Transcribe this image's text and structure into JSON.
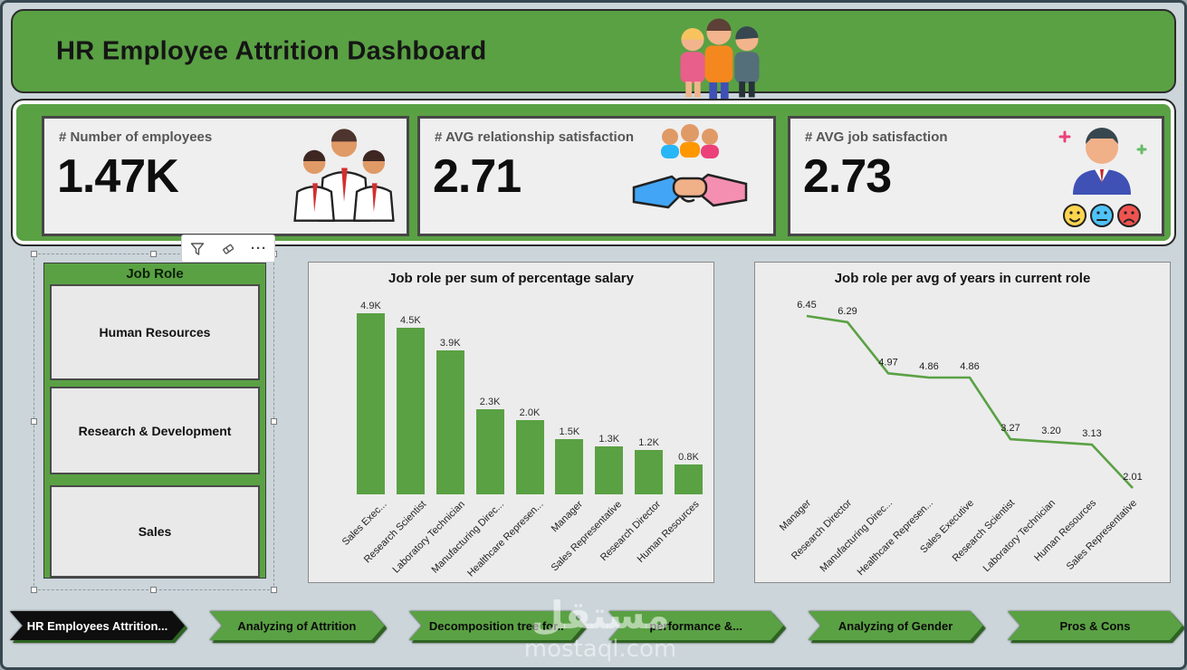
{
  "header": {
    "title": "HR Employee Attrition Dashboard"
  },
  "kpis": [
    {
      "label": "# Number of employees",
      "value": "1.47K",
      "icon": "employees-group-icon"
    },
    {
      "label": "# AVG relationship satisfaction",
      "value": "2.71",
      "icon": "handshake-icon"
    },
    {
      "label": "# AVG job satisfaction",
      "value": "2.73",
      "icon": "job-satisfaction-icon"
    }
  ],
  "toolbar": {
    "more": "···"
  },
  "slicer": {
    "title": "Job Role",
    "items": [
      "Human Resources",
      "Research & Development",
      "Sales"
    ]
  },
  "chart_data": [
    {
      "type": "bar",
      "title": "Job role per sum of percentage salary",
      "categories": [
        "Sales Exec...",
        "Research Scientist",
        "Laboratory Technician",
        "Manufacturing Direc...",
        "Healthcare Represen...",
        "Manager",
        "Sales Representative",
        "Research Director",
        "Human Resources"
      ],
      "values": [
        4900,
        4500,
        3900,
        2300,
        2000,
        1500,
        1300,
        1200,
        800
      ],
      "value_labels": [
        "4.9K",
        "4.5K",
        "3.9K",
        "2.3K",
        "2.0K",
        "1.5K",
        "1.3K",
        "1.2K",
        "0.8K"
      ],
      "bar_color": "#5aa144",
      "xlabel": "",
      "ylabel": "",
      "grid": false,
      "legend": "none"
    },
    {
      "type": "line",
      "title": "Job role per avg of years in current role",
      "categories": [
        "Manager",
        "Research Director",
        "Manufacturing Direc...",
        "Healthcare Represen...",
        "Sales Executive",
        "Research Scientist",
        "Laboratory Technician",
        "Human Resources",
        "Sales Representative"
      ],
      "values": [
        6.45,
        6.29,
        4.97,
        4.86,
        4.86,
        3.27,
        3.2,
        3.13,
        2.01
      ],
      "value_labels": [
        "6.45",
        "6.29",
        "4.97",
        "4.86",
        "4.86",
        "3.27",
        "3.20",
        "3.13",
        "2.01"
      ],
      "line_color": "#5aa144",
      "xlabel": "",
      "ylabel": "",
      "grid": false,
      "legend": "none"
    }
  ],
  "nav_tabs": [
    {
      "label": "HR Employees Attrition...",
      "active": true
    },
    {
      "label": "Analyzing of Attrition",
      "active": false
    },
    {
      "label": "Decomposition tree for..",
      "active": false
    },
    {
      "label": "performance &...",
      "active": false
    },
    {
      "label": "Analyzing of Gender",
      "active": false
    },
    {
      "label": "Pros & Cons",
      "active": false
    }
  ],
  "watermark": {
    "arabic": "مستقل",
    "latin": "mostaql.com"
  },
  "colors": {
    "green": "#5aa144",
    "green_dark": "#2d6322",
    "panel_gray": "#ececec",
    "page_bg": "#cbd5da",
    "card_bg": "#efefef",
    "active_tab": "#0e0e0e"
  }
}
